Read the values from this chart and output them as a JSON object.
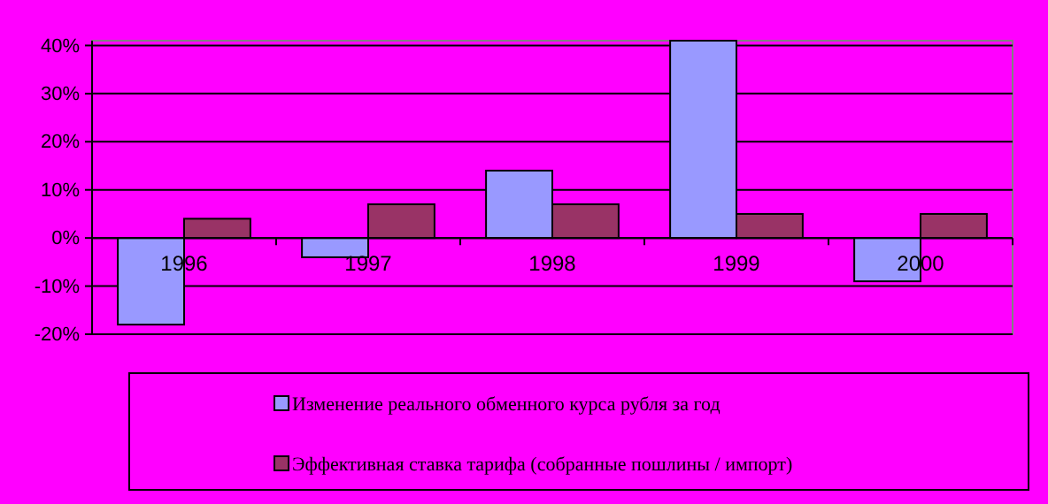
{
  "chart_data": {
    "type": "bar",
    "categories": [
      "1996",
      "1997",
      "1998",
      "1999",
      "2000"
    ],
    "series": [
      {
        "name": "Изменение реального обменного курса рубля за год",
        "color": "#9999ff",
        "values": [
          -18,
          -4,
          14,
          41,
          -9
        ]
      },
      {
        "name": "Эффективная ставка тарифа (собранные пошлины / импорт)",
        "color": "#993366",
        "values": [
          4,
          7,
          7,
          5,
          5
        ]
      }
    ],
    "ylim": [
      -20,
      41
    ],
    "yticks": [
      {
        "value": -20,
        "label": "-20%"
      },
      {
        "value": -10,
        "label": "-10%"
      },
      {
        "value": 0,
        "label": "0%"
      },
      {
        "value": 10,
        "label": "10%"
      },
      {
        "value": 20,
        "label": "20%"
      },
      {
        "value": 30,
        "label": "30%"
      },
      {
        "value": 40,
        "label": "40%"
      }
    ],
    "grid": "y",
    "legend": "bottom"
  }
}
